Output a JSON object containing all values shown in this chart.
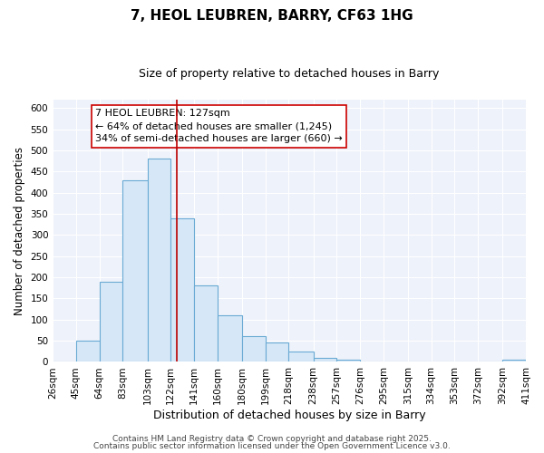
{
  "title": "7, HEOL LEUBREN, BARRY, CF63 1HG",
  "subtitle": "Size of property relative to detached houses in Barry",
  "xlabel": "Distribution of detached houses by size in Barry",
  "ylabel": "Number of detached properties",
  "bin_edges": [
    26,
    45,
    64,
    83,
    103,
    122,
    141,
    160,
    180,
    199,
    218,
    238,
    257,
    276,
    295,
    315,
    334,
    353,
    372,
    392,
    411
  ],
  "bar_heights": [
    0,
    50,
    190,
    430,
    480,
    340,
    180,
    110,
    60,
    45,
    25,
    10,
    5,
    0,
    0,
    0,
    0,
    0,
    0,
    5
  ],
  "bar_color": "#d6e8f7",
  "bar_edgecolor": "#6aaad4",
  "vline_x": 127,
  "vline_color": "#bb0000",
  "annotation_line1": "7 HEOL LEUBREN: 127sqm",
  "annotation_line2": "← 64% of detached houses are smaller (1,245)",
  "annotation_line3": "34% of semi-detached houses are larger (660) →",
  "ylim": [
    0,
    620
  ],
  "yticks": [
    0,
    50,
    100,
    150,
    200,
    250,
    300,
    350,
    400,
    450,
    500,
    550,
    600
  ],
  "background_color": "#eef2fa",
  "footer_line1": "Contains HM Land Registry data © Crown copyright and database right 2025.",
  "footer_line2": "Contains public sector information licensed under the Open Government Licence v3.0.",
  "title_fontsize": 11,
  "subtitle_fontsize": 9,
  "xlabel_fontsize": 9,
  "ylabel_fontsize": 8.5,
  "tick_fontsize": 7.5,
  "annotation_fontsize": 8,
  "footer_fontsize": 6.5
}
